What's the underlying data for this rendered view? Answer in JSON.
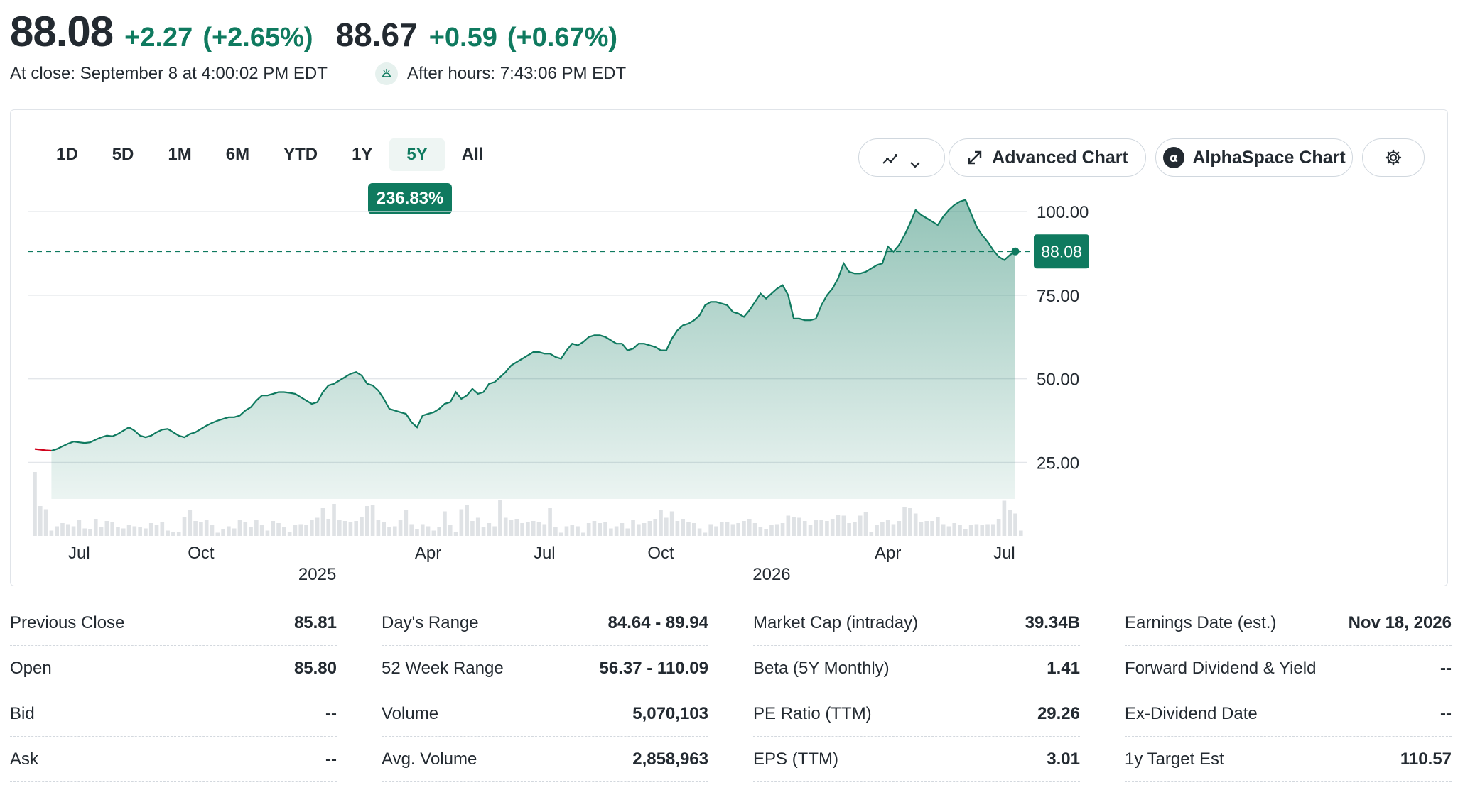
{
  "quote": {
    "price": "88.08",
    "change": "+2.27",
    "change_pct": "(+2.65%)",
    "after_hours_price": "88.67",
    "after_hours_change": "+0.59",
    "after_hours_change_pct": "(+0.67%)",
    "close_time": "At close: September 8 at 4:00:02 PM EDT",
    "after_hours_time": "After hours: 7:43:06 PM EDT"
  },
  "toolbar": {
    "ranges": [
      "1D",
      "5D",
      "1M",
      "6M",
      "YTD",
      "1Y",
      "5Y",
      "All"
    ],
    "selected_range": "5Y",
    "range_return": "236.83%",
    "advanced_chart_label": "Advanced Chart",
    "alphaspace_chart_label": "AlphaSpace Chart"
  },
  "colors": {
    "accent": "#0f7a5f",
    "negative": "#d0021b",
    "volume": "#dfe2e5"
  },
  "chart_data": {
    "type": "area",
    "ylim": [
      20,
      110
    ],
    "y_ticks": [
      25,
      50,
      75,
      100
    ],
    "y_tick_labels": [
      "25.00",
      "50.00",
      "75.00",
      "100.00"
    ],
    "x_month_labels": [
      "Jul",
      "Oct",
      "Apr",
      "Jul",
      "Oct",
      "Apr",
      "Jul"
    ],
    "x_month_index": [
      8,
      30,
      71,
      92,
      113,
      154,
      175
    ],
    "x_year_labels": [
      "2025",
      "2026"
    ],
    "x_year_index": [
      51,
      133
    ],
    "current_price": 88.08,
    "current_price_label": "88.08",
    "grid": true,
    "prices": [
      29.0,
      28.8,
      28.6,
      28.5,
      29.0,
      29.8,
      30.6,
      31.2,
      31.0,
      30.8,
      31.0,
      31.8,
      32.5,
      33.0,
      32.8,
      33.5,
      34.5,
      35.5,
      34.5,
      33.0,
      32.5,
      33.0,
      34.0,
      34.8,
      35.0,
      34.0,
      33.0,
      32.5,
      33.5,
      34.0,
      35.0,
      36.0,
      36.8,
      37.5,
      38.0,
      38.5,
      38.5,
      39.0,
      40.5,
      41.5,
      43.5,
      45.0,
      45.0,
      45.5,
      46.0,
      46.0,
      45.8,
      45.5,
      44.5,
      43.5,
      42.5,
      43.0,
      46.0,
      48.0,
      48.5,
      49.5,
      50.5,
      51.5,
      52.0,
      51.0,
      48.5,
      48.0,
      46.5,
      44.0,
      41.0,
      40.5,
      40.0,
      39.5,
      37.0,
      35.5,
      39.0,
      39.5,
      40.0,
      41.0,
      42.5,
      43.0,
      46.0,
      44.0,
      45.0,
      47.0,
      45.5,
      46.0,
      48.5,
      49.0,
      50.5,
      52.0,
      54.0,
      55.0,
      56.0,
      57.0,
      58.0,
      58.0,
      57.5,
      57.5,
      56.5,
      56.0,
      58.5,
      60.5,
      60.0,
      61.0,
      62.5,
      63.0,
      63.0,
      62.5,
      61.5,
      60.5,
      60.5,
      58.5,
      59.0,
      60.5,
      60.5,
      60.0,
      59.5,
      58.5,
      58.5,
      62.0,
      64.5,
      66.0,
      66.5,
      67.5,
      69.0,
      72.0,
      73.0,
      73.0,
      72.5,
      72.0,
      70.0,
      69.5,
      68.5,
      70.5,
      73.0,
      75.5,
      74.0,
      75.5,
      77.0,
      78.0,
      75.0,
      68.0,
      68.0,
      67.5,
      67.5,
      68.0,
      72.0,
      75.0,
      77.0,
      80.0,
      84.5,
      82.0,
      81.5,
      81.5,
      82.0,
      83.0,
      84.0,
      84.5,
      89.5,
      88.0,
      90.0,
      93.0,
      96.5,
      100.5,
      99.0,
      98.0,
      97.0,
      96.0,
      98.5,
      100.5,
      102.0,
      103.0,
      103.5,
      99.5,
      95.5,
      93.0,
      91.0,
      88.5,
      86.5,
      85.5,
      87.0,
      88.08
    ],
    "volumes": [
      0.6,
      0.28,
      0.25,
      0.05,
      0.09,
      0.12,
      0.11,
      0.09,
      0.15,
      0.07,
      0.06,
      0.16,
      0.08,
      0.14,
      0.13,
      0.08,
      0.07,
      0.1,
      0.09,
      0.08,
      0.07,
      0.12,
      0.1,
      0.13,
      0.05,
      0.04,
      0.04,
      0.18,
      0.24,
      0.14,
      0.13,
      0.15,
      0.1,
      0.03,
      0.06,
      0.09,
      0.07,
      0.15,
      0.13,
      0.08,
      0.15,
      0.1,
      0.05,
      0.14,
      0.12,
      0.08,
      0.04,
      0.1,
      0.11,
      0.1,
      0.15,
      0.17,
      0.26,
      0.16,
      0.3,
      0.15,
      0.14,
      0.13,
      0.14,
      0.18,
      0.28,
      0.29,
      0.15,
      0.13,
      0.08,
      0.09,
      0.15,
      0.24,
      0.11,
      0.06,
      0.11,
      0.09,
      0.05,
      0.08,
      0.23,
      0.1,
      0.04,
      0.25,
      0.29,
      0.14,
      0.17,
      0.08,
      0.12,
      0.09,
      0.34,
      0.17,
      0.15,
      0.16,
      0.12,
      0.13,
      0.14,
      0.13,
      0.11,
      0.26,
      0.08,
      0.03,
      0.09,
      0.1,
      0.09,
      0.03,
      0.12,
      0.14,
      0.12,
      0.13,
      0.07,
      0.09,
      0.12,
      0.07,
      0.15,
      0.11,
      0.12,
      0.14,
      0.16,
      0.24,
      0.17,
      0.23,
      0.14,
      0.16,
      0.13,
      0.12,
      0.07,
      0.03,
      0.11,
      0.09,
      0.13,
      0.13,
      0.11,
      0.12,
      0.14,
      0.16,
      0.12,
      0.08,
      0.06,
      0.1,
      0.11,
      0.12,
      0.19,
      0.18,
      0.17,
      0.14,
      0.1,
      0.15,
      0.15,
      0.14,
      0.16,
      0.2,
      0.19,
      0.12,
      0.13,
      0.19,
      0.22,
      0.04,
      0.1,
      0.13,
      0.15,
      0.11,
      0.14,
      0.27,
      0.26,
      0.21,
      0.13,
      0.14,
      0.14,
      0.18,
      0.11,
      0.09,
      0.12,
      0.1,
      0.06,
      0.1,
      0.11,
      0.1,
      0.11,
      0.11,
      0.16,
      0.33,
      0.24,
      0.21,
      0.05
    ]
  },
  "stats": [
    [
      {
        "label": "Previous Close",
        "value": "85.81"
      },
      {
        "label": "Open",
        "value": "85.80"
      },
      {
        "label": "Bid",
        "value": "--"
      },
      {
        "label": "Ask",
        "value": "--"
      }
    ],
    [
      {
        "label": "Day's Range",
        "value": "84.64 - 89.94"
      },
      {
        "label": "52 Week Range",
        "value": "56.37 - 110.09"
      },
      {
        "label": "Volume",
        "value": "5,070,103"
      },
      {
        "label": "Avg. Volume",
        "value": "2,858,963"
      }
    ],
    [
      {
        "label": "Market Cap (intraday)",
        "value": "39.34B"
      },
      {
        "label": "Beta (5Y Monthly)",
        "value": "1.41"
      },
      {
        "label": "PE Ratio (TTM)",
        "value": "29.26"
      },
      {
        "label": "EPS (TTM)",
        "value": "3.01"
      }
    ],
    [
      {
        "label": "Earnings Date (est.)",
        "value": "Nov 18, 2026"
      },
      {
        "label": "Forward Dividend & Yield",
        "value": "--"
      },
      {
        "label": "Ex-Dividend Date",
        "value": "--"
      },
      {
        "label": "1y Target Est",
        "value": "110.57"
      }
    ]
  ]
}
